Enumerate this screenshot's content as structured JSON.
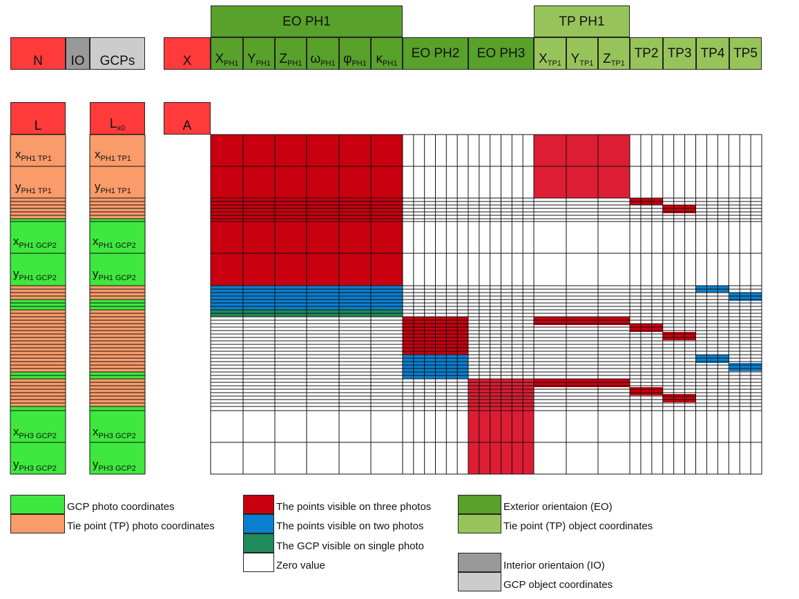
{
  "colors": {
    "red": "#fe3a3a",
    "red_dark": "#c80010",
    "red_tp": "#dd1d33",
    "orange": "#fa9b6a",
    "green": "#3ee83e",
    "eo_green": "#58a12a",
    "tp_green": "#97c45a",
    "io_gray": "#999999",
    "gcp_gray": "#cccccc",
    "blue": "#0a7fd0",
    "teal": "#1f8a5a"
  },
  "vectors": {
    "N": "N",
    "IO": "IO",
    "GCPs": "GCPs",
    "X": "X",
    "L": "L",
    "Lx0_base": "L",
    "Lx0_sub": "x0",
    "A": "A"
  },
  "header": {
    "eo_ph1": "EO PH1",
    "tp_ph1": "TP PH1",
    "eo_ph1_cols": [
      {
        "base": "X",
        "sub": "PH1"
      },
      {
        "base": "Y",
        "sub": "PH1"
      },
      {
        "base": "Z",
        "sub": "PH1"
      },
      {
        "base": "ω",
        "sub": "PH1"
      },
      {
        "base": "φ",
        "sub": "PH1"
      },
      {
        "base": "κ",
        "sub": "PH1"
      }
    ],
    "eo_ph2": "EO PH2",
    "eo_ph3": "EO PH3",
    "tp_ph1_cols": [
      {
        "base": "X",
        "sub": "TP1"
      },
      {
        "base": "Y",
        "sub": "TP1"
      },
      {
        "base": "Z",
        "sub": "TP1"
      }
    ],
    "tp_others": [
      "TP2",
      "TP3",
      "TP4",
      "TP5"
    ]
  },
  "rows": [
    {
      "base": "x",
      "sub": "PH1 TP1"
    },
    {
      "base": "y",
      "sub": "PH1 TP1"
    },
    {
      "base": "x",
      "sub": "PH1 GCP2"
    },
    {
      "base": "y",
      "sub": "PH1 GCP2"
    },
    {
      "base": "x",
      "sub": "PH3 GCP2"
    },
    {
      "base": "y",
      "sub": "PH3 GCP2"
    }
  ],
  "legend": [
    {
      "text": "GCP photo coordinates",
      "color": "#3ee83e"
    },
    {
      "text": "Tie point (TP) photo coordinates",
      "color": "#fa9b6a"
    },
    {
      "text": "The points visible on three photos",
      "color": "#c80010"
    },
    {
      "text": "The points visible on two photos",
      "color": "#0a7fd0"
    },
    {
      "text": "The GCP visible on single photo",
      "color": "#1f8a5a"
    },
    {
      "text": "Zero value",
      "color": "#ffffff"
    },
    {
      "text": "Exterior orientaion (EO)",
      "color": "#58a12a"
    },
    {
      "text": "Tie point (TP) object coordinates",
      "color": "#97c45a"
    },
    {
      "text": "Interior orientaion  (IO)",
      "color": "#999999"
    },
    {
      "text": "GCP object coordinates",
      "color": "#cccccc"
    }
  ]
}
